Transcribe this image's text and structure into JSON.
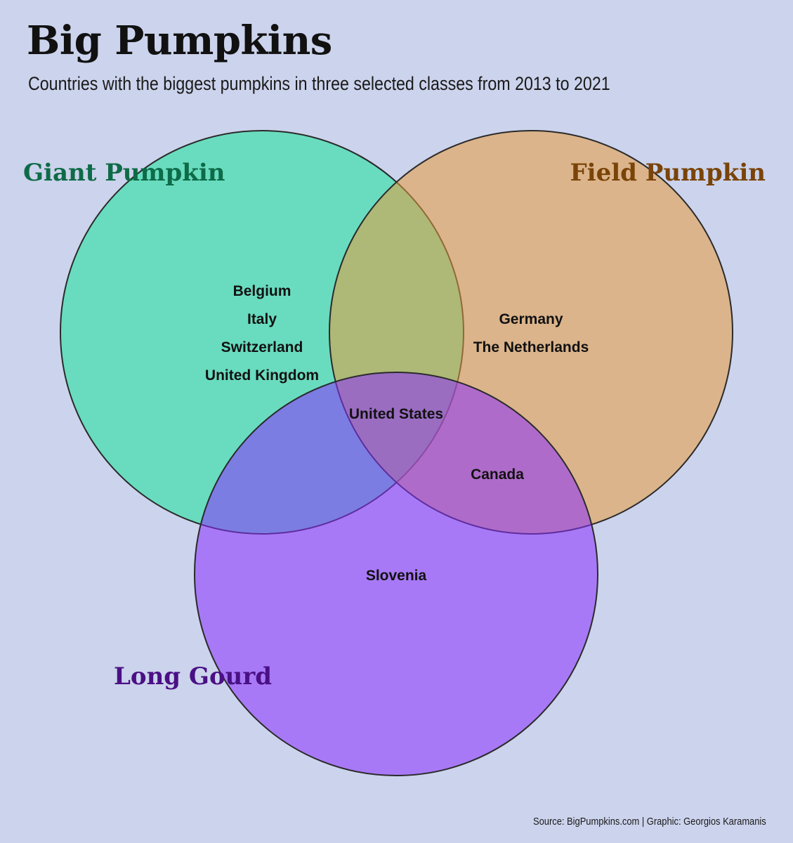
{
  "title": "Big Pumpkins",
  "subtitle": "Countries with the biggest pumpkins in three selected classes from 2013 to 2021",
  "source": "Source: BigPumpkins.com | Graphic: Georgios Karamanis",
  "sets": [
    {
      "name": "Giant Pumpkin",
      "fill": "#17e39a",
      "label_color": "#0e6b47"
    },
    {
      "name": "Field Pumpkin",
      "fill": "#e79a3c",
      "label_color": "#7a4408"
    },
    {
      "name": "Long Gourd",
      "fill": "#8a2fff",
      "label_color": "#4a1085"
    }
  ],
  "regions": {
    "giant_only": [
      "Belgium",
      "Italy",
      "Switzerland",
      "United Kingdom"
    ],
    "field_only": [
      "Germany",
      "The Netherlands"
    ],
    "long_only": [
      "Slovenia"
    ],
    "giant_field": [],
    "giant_long": [],
    "field_long": [
      "Canada"
    ],
    "all_three": [
      "United States"
    ]
  }
}
